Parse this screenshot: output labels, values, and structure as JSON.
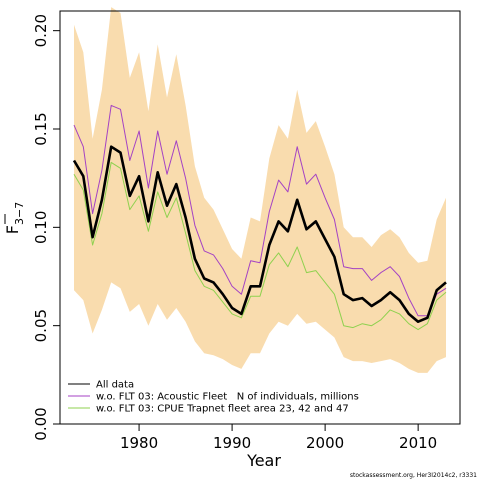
{
  "chart_data": {
    "type": "line",
    "xlabel": "Year",
    "ylabel": "F̅ 3−7",
    "ylabel_main": "F",
    "ylabel_sub": "3−7",
    "xlim": [
      1971.5,
      2014.5
    ],
    "ylim": [
      0,
      0.21
    ],
    "x_ticks": [
      1980,
      1990,
      2000,
      2010
    ],
    "y_ticks": [
      0.0,
      0.05,
      0.1,
      0.15,
      0.2
    ],
    "y_tick_labels": [
      "0.00",
      "0.05",
      "0.10",
      "0.15",
      "0.20"
    ],
    "x": [
      1973,
      1974,
      1975,
      1976,
      1977,
      1978,
      1979,
      1980,
      1981,
      1982,
      1983,
      1984,
      1985,
      1986,
      1987,
      1988,
      1989,
      1990,
      1991,
      1992,
      1993,
      1994,
      1995,
      1996,
      1997,
      1998,
      1999,
      2000,
      2001,
      2002,
      2003,
      2004,
      2005,
      2006,
      2007,
      2008,
      2009,
      2010,
      2011,
      2012,
      2013
    ],
    "band": {
      "color": "#f9dcae",
      "upper": [
        0.203,
        0.189,
        0.145,
        0.17,
        0.212,
        0.209,
        0.176,
        0.189,
        0.159,
        0.193,
        0.166,
        0.188,
        0.162,
        0.131,
        0.115,
        0.109,
        0.099,
        0.089,
        0.084,
        0.105,
        0.103,
        0.135,
        0.152,
        0.145,
        0.17,
        0.148,
        0.154,
        0.141,
        0.127,
        0.1,
        0.095,
        0.095,
        0.09,
        0.096,
        0.099,
        0.095,
        0.087,
        0.082,
        0.083,
        0.104,
        0.115
      ],
      "lower": [
        0.068,
        0.063,
        0.046,
        0.058,
        0.072,
        0.069,
        0.057,
        0.061,
        0.05,
        0.061,
        0.053,
        0.059,
        0.052,
        0.042,
        0.036,
        0.035,
        0.033,
        0.03,
        0.028,
        0.036,
        0.036,
        0.046,
        0.052,
        0.05,
        0.056,
        0.051,
        0.052,
        0.048,
        0.044,
        0.034,
        0.032,
        0.032,
        0.031,
        0.032,
        0.033,
        0.031,
        0.028,
        0.026,
        0.026,
        0.032,
        0.034
      ]
    },
    "series": [
      {
        "name": "All data",
        "color": "#000000",
        "width": 2.6,
        "values": [
          0.134,
          0.126,
          0.095,
          0.114,
          0.141,
          0.138,
          0.116,
          0.126,
          0.103,
          0.128,
          0.111,
          0.122,
          0.105,
          0.084,
          0.074,
          0.072,
          0.066,
          0.059,
          0.056,
          0.07,
          0.07,
          0.091,
          0.103,
          0.098,
          0.114,
          0.099,
          0.103,
          0.094,
          0.085,
          0.066,
          0.063,
          0.064,
          0.06,
          0.063,
          0.067,
          0.063,
          0.056,
          0.052,
          0.054,
          0.068,
          0.072
        ]
      },
      {
        "name": "w.o. FLT 03: Acoustic Fleet   N of individuals, millions",
        "color": "#a442c4",
        "width": 1,
        "values": [
          0.152,
          0.141,
          0.107,
          0.129,
          0.162,
          0.16,
          0.134,
          0.149,
          0.12,
          0.149,
          0.127,
          0.144,
          0.125,
          0.101,
          0.088,
          0.086,
          0.079,
          0.07,
          0.066,
          0.083,
          0.082,
          0.108,
          0.124,
          0.118,
          0.141,
          0.122,
          0.127,
          0.115,
          0.104,
          0.08,
          0.079,
          0.079,
          0.073,
          0.077,
          0.08,
          0.075,
          0.064,
          0.055,
          0.055,
          0.066,
          0.069
        ]
      },
      {
        "name": "w.o. FLT 03: CPUE Trapnet fleet area 23, 42 and 47",
        "color": "#8fd14f",
        "width": 1,
        "values": [
          0.127,
          0.119,
          0.091,
          0.107,
          0.133,
          0.13,
          0.109,
          0.116,
          0.098,
          0.118,
          0.105,
          0.115,
          0.097,
          0.078,
          0.07,
          0.068,
          0.062,
          0.056,
          0.054,
          0.065,
          0.065,
          0.081,
          0.087,
          0.08,
          0.09,
          0.077,
          0.078,
          0.072,
          0.066,
          0.05,
          0.049,
          0.051,
          0.05,
          0.053,
          0.058,
          0.056,
          0.051,
          0.048,
          0.051,
          0.063,
          0.067
        ]
      }
    ],
    "legend_placement": "bottom-left",
    "footer": "stockassessment.org,  Her3I2014c2,  r3331"
  }
}
